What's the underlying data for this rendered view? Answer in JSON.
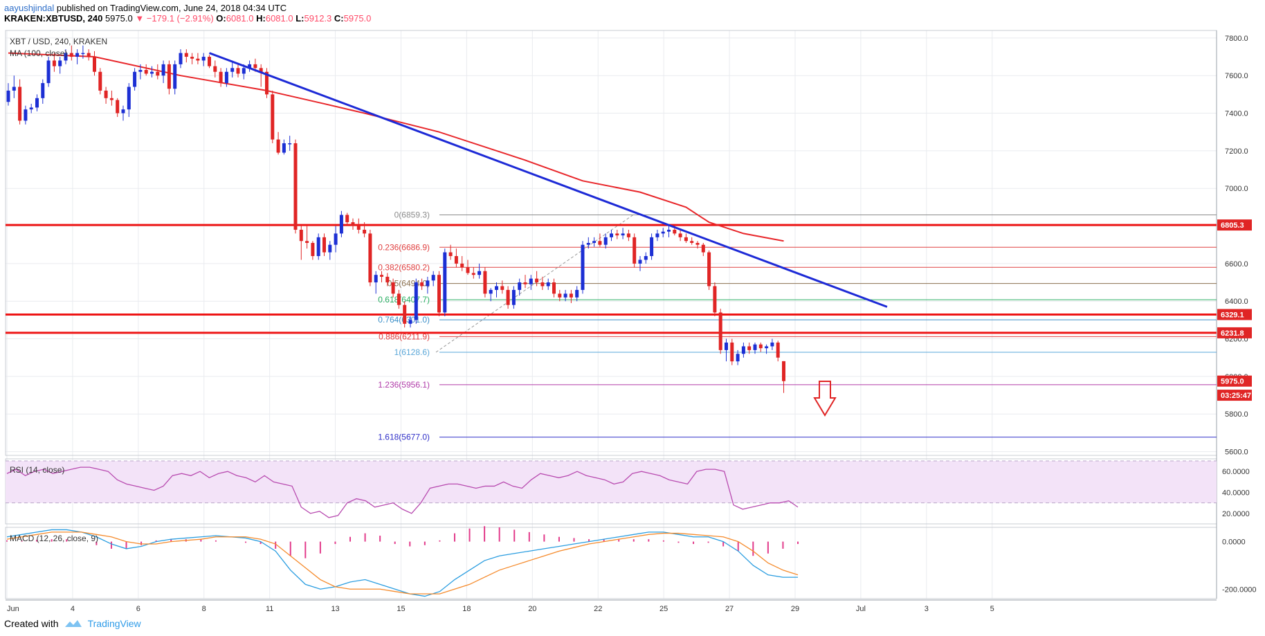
{
  "header": {
    "author": "aayushjindal",
    "published": " published on TradingView.com, June 24, 2018 04:34 UTC",
    "ticker": "KRAKEN:XBTUSD, 240",
    "last": "5975.0",
    "change": "▼ −179.1 (−2.91%)",
    "o_label": "O:",
    "o": "6081.0",
    "h_label": "H:",
    "h": "6081.0",
    "l_label": "L:",
    "l": "5912.3",
    "c_label": "C:",
    "c": "5975.0"
  },
  "footer": {
    "created_with": "Created with",
    "brand": "TradingView"
  },
  "colors": {
    "bull": "#1c2fd4",
    "bear": "#e02525",
    "ma": "#e8262a",
    "trend": "#1d2ad6",
    "resistance": "#ee1515",
    "rsi_line": "#b84bb0",
    "rsi_fill": "#f3e3f8",
    "macd_line": "#2a9de0",
    "signal_line": "#f58a2b",
    "hist": "#e23a8a",
    "grid": "#e9ebef"
  },
  "chart_data": {
    "type": "candlestick",
    "symbol_label": "XBT / USD, 240, KRAKEN",
    "ma_label": "MA (100, close)",
    "ylim": [
      5580,
      7840
    ],
    "y_ticks": [
      "7800.0",
      "7600.0",
      "7400.0",
      "7200.0",
      "7000.0",
      "6800.0",
      "6600.0",
      "6400.0",
      "6200.0",
      "6000.0",
      "5800.0",
      "5600.0"
    ],
    "x_ticks": [
      "Jun",
      "4",
      "6",
      "8",
      "11",
      "13",
      "15",
      "18",
      "20",
      "22",
      "25",
      "27",
      "29",
      "Jul",
      "3",
      "5"
    ],
    "candles": [
      [
        0,
        7460,
        7560,
        7440,
        7520
      ],
      [
        1,
        7520,
        7600,
        7480,
        7540
      ],
      [
        2,
        7540,
        7580,
        7340,
        7360
      ],
      [
        3,
        7360,
        7440,
        7340,
        7420
      ],
      [
        4,
        7420,
        7450,
        7400,
        7430
      ],
      [
        5,
        7430,
        7500,
        7410,
        7480
      ],
      [
        6,
        7480,
        7580,
        7450,
        7560
      ],
      [
        7,
        7560,
        7700,
        7540,
        7680
      ],
      [
        8,
        7680,
        7720,
        7620,
        7650
      ],
      [
        9,
        7650,
        7700,
        7610,
        7680
      ],
      [
        10,
        7680,
        7740,
        7660,
        7720
      ],
      [
        11,
        7720,
        7760,
        7680,
        7700
      ],
      [
        12,
        7700,
        7740,
        7660,
        7720
      ],
      [
        13,
        7720,
        7760,
        7690,
        7720
      ],
      [
        14,
        7720,
        7740,
        7680,
        7700
      ],
      [
        15,
        7700,
        7730,
        7600,
        7620
      ],
      [
        16,
        7620,
        7640,
        7500,
        7520
      ],
      [
        17,
        7520,
        7540,
        7450,
        7480
      ],
      [
        18,
        7480,
        7520,
        7440,
        7470
      ],
      [
        19,
        7470,
        7480,
        7380,
        7400
      ],
      [
        20,
        7400,
        7440,
        7360,
        7420
      ],
      [
        21,
        7420,
        7560,
        7380,
        7540
      ],
      [
        22,
        7540,
        7640,
        7520,
        7620
      ],
      [
        23,
        7620,
        7660,
        7580,
        7630
      ],
      [
        24,
        7630,
        7660,
        7600,
        7610
      ],
      [
        25,
        7610,
        7650,
        7590,
        7620
      ],
      [
        26,
        7620,
        7660,
        7580,
        7600
      ],
      [
        27,
        7600,
        7680,
        7560,
        7660
      ],
      [
        28,
        7660,
        7680,
        7500,
        7530
      ],
      [
        29,
        7530,
        7680,
        7500,
        7660
      ],
      [
        30,
        7660,
        7740,
        7640,
        7720
      ],
      [
        31,
        7720,
        7740,
        7670,
        7700
      ],
      [
        32,
        7700,
        7720,
        7660,
        7690
      ],
      [
        33,
        7690,
        7720,
        7660,
        7680
      ],
      [
        34,
        7680,
        7720,
        7650,
        7700
      ],
      [
        35,
        7700,
        7710,
        7640,
        7650
      ],
      [
        36,
        7650,
        7680,
        7590,
        7620
      ],
      [
        37,
        7620,
        7640,
        7540,
        7560
      ],
      [
        38,
        7560,
        7640,
        7540,
        7620
      ],
      [
        39,
        7620,
        7680,
        7590,
        7640
      ],
      [
        40,
        7640,
        7660,
        7590,
        7610
      ],
      [
        41,
        7610,
        7660,
        7580,
        7640
      ],
      [
        42,
        7640,
        7680,
        7620,
        7660
      ],
      [
        43,
        7660,
        7690,
        7620,
        7640
      ],
      [
        44,
        7640,
        7660,
        7540,
        7620
      ],
      [
        45,
        7620,
        7640,
        7480,
        7500
      ],
      [
        46,
        7500,
        7520,
        7240,
        7260
      ],
      [
        47,
        7260,
        7300,
        7180,
        7190
      ],
      [
        48,
        7190,
        7260,
        7180,
        7240
      ],
      [
        49,
        7240,
        7280,
        7200,
        7240
      ],
      [
        50,
        7240,
        7260,
        6760,
        6780
      ],
      [
        51,
        6780,
        6800,
        6620,
        6720
      ],
      [
        52,
        6720,
        6800,
        6680,
        6710
      ],
      [
        53,
        6710,
        6720,
        6620,
        6640
      ],
      [
        54,
        6640,
        6760,
        6620,
        6740
      ],
      [
        55,
        6740,
        6760,
        6640,
        6660
      ],
      [
        56,
        6660,
        6720,
        6620,
        6700
      ],
      [
        57,
        6700,
        6800,
        6660,
        6760
      ],
      [
        58,
        6760,
        6880,
        6740,
        6859
      ],
      [
        59,
        6859,
        6870,
        6800,
        6820
      ],
      [
        60,
        6820,
        6840,
        6780,
        6800
      ],
      [
        61,
        6800,
        6840,
        6760,
        6780
      ],
      [
        62,
        6780,
        6820,
        6740,
        6760
      ],
      [
        63,
        6760,
        6780,
        6480,
        6500
      ],
      [
        64,
        6500,
        6560,
        6440,
        6540
      ],
      [
        65,
        6540,
        6560,
        6500,
        6530
      ],
      [
        66,
        6530,
        6550,
        6480,
        6500
      ],
      [
        67,
        6500,
        6520,
        6420,
        6440
      ],
      [
        68,
        6440,
        6460,
        6360,
        6380
      ],
      [
        69,
        6380,
        6400,
        6260,
        6280
      ],
      [
        70,
        6280,
        6320,
        6260,
        6300
      ],
      [
        71,
        6300,
        6520,
        6280,
        6500
      ],
      [
        72,
        6500,
        6520,
        6460,
        6480
      ],
      [
        73,
        6480,
        6530,
        6440,
        6510
      ],
      [
        74,
        6510,
        6560,
        6480,
        6540
      ],
      [
        75,
        6540,
        6560,
        6320,
        6340
      ],
      [
        76,
        6340,
        6680,
        6320,
        6660
      ],
      [
        77,
        6660,
        6700,
        6620,
        6640
      ],
      [
        78,
        6640,
        6680,
        6580,
        6600
      ],
      [
        79,
        6600,
        6640,
        6560,
        6580
      ],
      [
        80,
        6580,
        6620,
        6540,
        6550
      ],
      [
        81,
        6550,
        6580,
        6520,
        6540
      ],
      [
        82,
        6540,
        6600,
        6520,
        6560
      ],
      [
        83,
        6560,
        6580,
        6420,
        6440
      ],
      [
        84,
        6440,
        6470,
        6400,
        6460
      ],
      [
        85,
        6460,
        6500,
        6420,
        6480
      ],
      [
        86,
        6480,
        6510,
        6440,
        6460
      ],
      [
        87,
        6460,
        6480,
        6360,
        6380
      ],
      [
        88,
        6380,
        6480,
        6360,
        6460
      ],
      [
        89,
        6460,
        6520,
        6430,
        6500
      ],
      [
        90,
        6500,
        6540,
        6470,
        6490
      ],
      [
        91,
        6490,
        6540,
        6460,
        6520
      ],
      [
        92,
        6520,
        6560,
        6480,
        6500
      ],
      [
        93,
        6500,
        6530,
        6460,
        6480
      ],
      [
        94,
        6480,
        6520,
        6460,
        6500
      ],
      [
        95,
        6500,
        6520,
        6420,
        6440
      ],
      [
        96,
        6440,
        6460,
        6400,
        6420
      ],
      [
        97,
        6420,
        6460,
        6400,
        6440
      ],
      [
        98,
        6440,
        6460,
        6390,
        6420
      ],
      [
        99,
        6420,
        6480,
        6400,
        6460
      ],
      [
        100,
        6460,
        6720,
        6440,
        6700
      ],
      [
        101,
        6700,
        6740,
        6680,
        6710
      ],
      [
        102,
        6710,
        6740,
        6690,
        6720
      ],
      [
        103,
        6720,
        6760,
        6690,
        6700
      ],
      [
        104,
        6700,
        6760,
        6680,
        6740
      ],
      [
        105,
        6740,
        6780,
        6720,
        6760
      ],
      [
        106,
        6760,
        6780,
        6730,
        6750
      ],
      [
        107,
        6750,
        6790,
        6730,
        6760
      ],
      [
        108,
        6760,
        6780,
        6720,
        6740
      ],
      [
        109,
        6740,
        6760,
        6580,
        6600
      ],
      [
        110,
        6600,
        6640,
        6560,
        6620
      ],
      [
        111,
        6620,
        6660,
        6600,
        6640
      ],
      [
        112,
        6640,
        6760,
        6620,
        6740
      ],
      [
        113,
        6740,
        6780,
        6720,
        6760
      ],
      [
        114,
        6760,
        6790,
        6740,
        6770
      ],
      [
        115,
        6770,
        6800,
        6740,
        6780
      ],
      [
        116,
        6780,
        6800,
        6750,
        6760
      ],
      [
        117,
        6760,
        6780,
        6720,
        6740
      ],
      [
        118,
        6740,
        6760,
        6710,
        6720
      ],
      [
        119,
        6720,
        6740,
        6700,
        6710
      ],
      [
        120,
        6710,
        6720,
        6680,
        6700
      ],
      [
        121,
        6700,
        6710,
        6640,
        6660
      ],
      [
        122,
        6660,
        6670,
        6460,
        6480
      ],
      [
        123,
        6480,
        6500,
        6320,
        6340
      ],
      [
        124,
        6340,
        6360,
        6120,
        6140
      ],
      [
        125,
        6140,
        6200,
        6080,
        6180
      ],
      [
        126,
        6180,
        6200,
        6060,
        6080
      ],
      [
        127,
        6080,
        6140,
        6060,
        6120
      ],
      [
        128,
        6120,
        6180,
        6100,
        6160
      ],
      [
        129,
        6160,
        6180,
        6120,
        6140
      ],
      [
        130,
        6140,
        6180,
        6120,
        6170
      ],
      [
        131,
        6170,
        6180,
        6130,
        6150
      ],
      [
        132,
        6150,
        6170,
        6120,
        6160
      ],
      [
        133,
        6160,
        6200,
        6140,
        6180
      ],
      [
        134,
        6180,
        6190,
        6080,
        6100
      ],
      [
        135,
        6081,
        6081,
        5912,
        5975
      ]
    ],
    "ma100": [
      [
        0,
        7720
      ],
      [
        15,
        7700
      ],
      [
        30,
        7600
      ],
      [
        45,
        7520
      ],
      [
        55,
        7450
      ],
      [
        62,
        7400
      ],
      [
        75,
        7300
      ],
      [
        90,
        7150
      ],
      [
        100,
        7040
      ],
      [
        110,
        6980
      ],
      [
        118,
        6900
      ],
      [
        122,
        6820
      ],
      [
        128,
        6760
      ],
      [
        135,
        6720
      ]
    ],
    "trendline": [
      [
        35,
        7720
      ],
      [
        122,
        6600
      ],
      [
        153,
        6370
      ]
    ],
    "horizontal_levels": [
      {
        "name": "resistance-upper",
        "value": 6805.3
      },
      {
        "name": "resistance-middle",
        "value": 6329.1
      },
      {
        "name": "support",
        "value": 6231.8
      }
    ],
    "fibonacci": {
      "levels": [
        {
          "label": "0(6859.3)",
          "value": 6859.3,
          "color": "#8c8c8c"
        },
        {
          "label": "0.236(6686.9)",
          "value": 6686.9,
          "color": "#e04040"
        },
        {
          "label": "0.382(6580.2)",
          "value": 6580.2,
          "color": "#e04040"
        },
        {
          "label": "0.5(6494.0)",
          "value": 6494.0,
          "color": "#8a6f4e"
        },
        {
          "label": "0.618(6407.7)",
          "value": 6407.7,
          "color": "#27ae60"
        },
        {
          "label": "0.764(6301.0)",
          "value": 6301.0,
          "color": "#3c8fc8"
        },
        {
          "label": "0.886(6211.9)",
          "value": 6211.9,
          "color": "#e04040"
        },
        {
          "label": "1(6128.6)",
          "value": 6128.6,
          "color": "#5aa7d8"
        },
        {
          "label": "1.236(5956.1)",
          "value": 5956.1,
          "color": "#b03aa8"
        },
        {
          "label": "1.618(5677.0)",
          "value": 5677.0,
          "color": "#3030c8"
        }
      ]
    },
    "price_tags": [
      {
        "text": "6805.3",
        "value": 6805.3
      },
      {
        "text": "6329.1",
        "value": 6329.1
      },
      {
        "text": "6231.8",
        "value": 6231.8
      },
      {
        "text": "5975.0",
        "value": 5975.0
      },
      {
        "text": "03:25:47",
        "value": 5900.0
      }
    ],
    "rsi": {
      "label": "RSI (14, close)",
      "ylim": [
        10,
        72
      ],
      "ticks": [
        "60.0000",
        "40.0000",
        "20.0000"
      ],
      "bands": [
        70,
        30
      ],
      "values": [
        58,
        62,
        56,
        60,
        62,
        58,
        60,
        62,
        64,
        64,
        62,
        60,
        52,
        48,
        46,
        44,
        42,
        46,
        56,
        58,
        56,
        60,
        54,
        58,
        60,
        56,
        54,
        50,
        56,
        50,
        48,
        46,
        26,
        20,
        22,
        16,
        18,
        30,
        34,
        32,
        26,
        28,
        30,
        24,
        20,
        30,
        44,
        46,
        48,
        48,
        46,
        44,
        46,
        46,
        50,
        46,
        44,
        52,
        58,
        56,
        54,
        56,
        60,
        56,
        54,
        52,
        48,
        50,
        58,
        60,
        58,
        56,
        52,
        50,
        48,
        60,
        62,
        62,
        60,
        28,
        24,
        26,
        28,
        30,
        30,
        32,
        26
      ]
    },
    "macd": {
      "label": "MACD (12, 26, close, 9)",
      "ylim": [
        -240,
        60
      ],
      "ticks": [
        "0.0000",
        "-200.0000"
      ],
      "macd": [
        20,
        30,
        40,
        50,
        50,
        40,
        20,
        -10,
        -30,
        -20,
        0,
        10,
        15,
        20,
        25,
        20,
        15,
        0,
        -40,
        -120,
        -180,
        -200,
        -190,
        -170,
        -160,
        -180,
        -200,
        -220,
        -230,
        -210,
        -160,
        -120,
        -80,
        -60,
        -50,
        -40,
        -30,
        -20,
        -10,
        0,
        10,
        20,
        30,
        40,
        40,
        30,
        20,
        20,
        0,
        -40,
        -100,
        -140,
        -150,
        -150
      ],
      "signal": [
        10,
        20,
        30,
        40,
        40,
        40,
        30,
        20,
        0,
        -10,
        -10,
        0,
        5,
        10,
        20,
        20,
        20,
        10,
        -10,
        -60,
        -110,
        -160,
        -190,
        -200,
        -200,
        -200,
        -210,
        -220,
        -220,
        -220,
        -200,
        -180,
        -150,
        -120,
        -100,
        -80,
        -60,
        -40,
        -25,
        -10,
        0,
        10,
        20,
        30,
        35,
        35,
        30,
        25,
        20,
        0,
        -40,
        -90,
        -120,
        -140
      ],
      "hist": [
        5,
        5,
        8,
        10,
        10,
        0,
        -15,
        -30,
        -30,
        -15,
        5,
        10,
        10,
        10,
        5,
        0,
        -5,
        -10,
        -30,
        -60,
        -70,
        -50,
        -10,
        20,
        35,
        25,
        -10,
        -20,
        -15,
        5,
        35,
        55,
        65,
        60,
        50,
        40,
        30,
        20,
        15,
        10,
        10,
        10,
        10,
        10,
        5,
        -5,
        -10,
        -5,
        -20,
        -40,
        -60,
        -50,
        -30,
        -10
      ]
    }
  }
}
